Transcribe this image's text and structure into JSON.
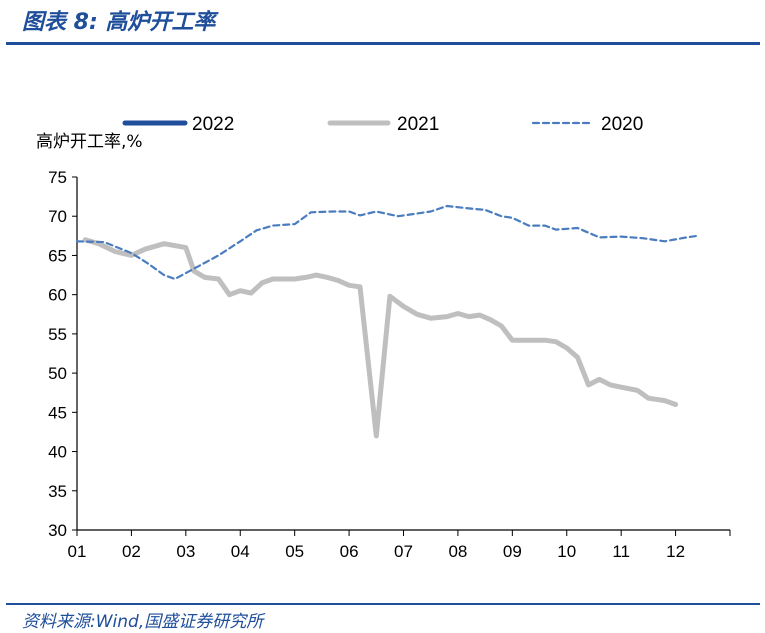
{
  "figure_title": "图表 8:  高炉开工率",
  "source_text": "资料来源:Wind,国盛证券研究所",
  "colors": {
    "s2022": "#1f4e9a",
    "s2021": "#bfbfbf",
    "s2020": "#4a7cc0",
    "axis": "#000000",
    "rule": "#1f4e9a"
  },
  "chart_data": {
    "type": "line",
    "ylabel": "高炉开工率,%",
    "xlabel": "",
    "ylim": [
      30,
      75
    ],
    "yticks": [
      30,
      35,
      40,
      45,
      50,
      55,
      60,
      65,
      70,
      75
    ],
    "xlim": [
      1,
      13
    ],
    "xtick_labels": [
      "01",
      "02",
      "03",
      "04",
      "05",
      "06",
      "07",
      "08",
      "09",
      "10",
      "11",
      "12"
    ],
    "grid": false,
    "legend": "top",
    "series": [
      {
        "name": "2022",
        "style": "solid-dark-blue",
        "points": []
      },
      {
        "name": "2021",
        "style": "solid-gray",
        "points": [
          [
            1.15,
            67
          ],
          [
            1.4,
            66.5
          ],
          [
            1.7,
            65.5
          ],
          [
            2.0,
            65
          ],
          [
            2.25,
            65.8
          ],
          [
            2.6,
            66.5
          ],
          [
            3.0,
            66
          ],
          [
            3.15,
            63
          ],
          [
            3.35,
            62.2
          ],
          [
            3.6,
            62
          ],
          [
            3.8,
            60
          ],
          [
            4.0,
            60.5
          ],
          [
            4.2,
            60.2
          ],
          [
            4.4,
            61.5
          ],
          [
            4.6,
            62
          ],
          [
            5.0,
            62
          ],
          [
            5.2,
            62.2
          ],
          [
            5.4,
            62.5
          ],
          [
            5.6,
            62.2
          ],
          [
            5.8,
            61.8
          ],
          [
            6.0,
            61.2
          ],
          [
            6.2,
            61
          ],
          [
            6.5,
            42
          ],
          [
            6.75,
            59.8
          ],
          [
            7.0,
            58.5
          ],
          [
            7.25,
            57.5
          ],
          [
            7.5,
            57
          ],
          [
            7.8,
            57.2
          ],
          [
            8.0,
            57.6
          ],
          [
            8.2,
            57.2
          ],
          [
            8.4,
            57.4
          ],
          [
            8.6,
            56.8
          ],
          [
            8.8,
            56
          ],
          [
            9.0,
            54.2
          ],
          [
            9.3,
            54.2
          ],
          [
            9.6,
            54.2
          ],
          [
            9.8,
            54
          ],
          [
            10.0,
            53.2
          ],
          [
            10.2,
            52
          ],
          [
            10.4,
            48.5
          ],
          [
            10.6,
            49.2
          ],
          [
            10.8,
            48.5
          ],
          [
            11.0,
            48.2
          ],
          [
            11.3,
            47.8
          ],
          [
            11.5,
            46.8
          ],
          [
            11.8,
            46.5
          ],
          [
            12.0,
            46
          ]
        ]
      },
      {
        "name": "2020",
        "style": "dashed-blue",
        "points": [
          [
            1.0,
            66.8
          ],
          [
            1.5,
            66.7
          ],
          [
            2.0,
            65.3
          ],
          [
            2.3,
            64
          ],
          [
            2.6,
            62.5
          ],
          [
            2.8,
            62
          ],
          [
            3.2,
            63.5
          ],
          [
            3.6,
            65
          ],
          [
            4.0,
            66.8
          ],
          [
            4.3,
            68.2
          ],
          [
            4.6,
            68.8
          ],
          [
            5.0,
            69
          ],
          [
            5.3,
            70.5
          ],
          [
            5.7,
            70.6
          ],
          [
            6.0,
            70.6
          ],
          [
            6.2,
            70.1
          ],
          [
            6.5,
            70.6
          ],
          [
            6.9,
            70
          ],
          [
            7.2,
            70.3
          ],
          [
            7.5,
            70.6
          ],
          [
            7.8,
            71.3
          ],
          [
            8.2,
            71
          ],
          [
            8.5,
            70.8
          ],
          [
            8.8,
            70
          ],
          [
            9.0,
            69.8
          ],
          [
            9.3,
            68.8
          ],
          [
            9.6,
            68.8
          ],
          [
            9.8,
            68.3
          ],
          [
            10.2,
            68.5
          ],
          [
            10.6,
            67.3
          ],
          [
            11.0,
            67.4
          ],
          [
            11.4,
            67.2
          ],
          [
            11.8,
            66.8
          ],
          [
            12.2,
            67.3
          ],
          [
            12.4,
            67.5
          ]
        ]
      }
    ]
  }
}
